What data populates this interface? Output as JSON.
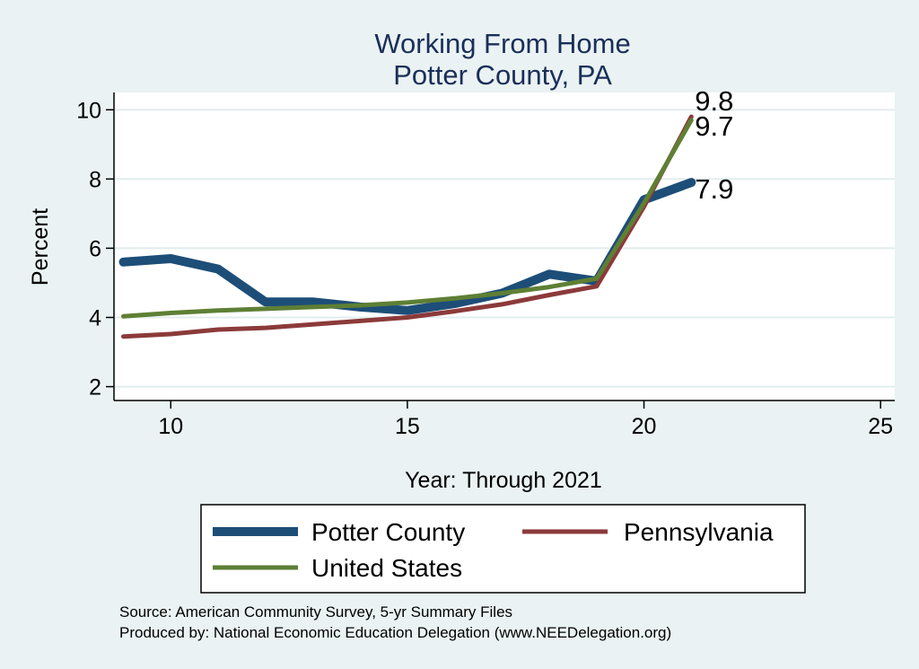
{
  "chart_data": {
    "type": "line",
    "title": [
      "Working From Home",
      "Potter County, PA"
    ],
    "xlabel": "Year: Through 2021",
    "ylabel": "Percent",
    "xlim": [
      8.8,
      25.3
    ],
    "ylim": [
      1.6,
      10.5
    ],
    "xticks": [
      10,
      15,
      20,
      25
    ],
    "yticks": [
      2,
      4,
      6,
      8,
      10
    ],
    "grid": true,
    "legend_position": "bottom",
    "colors": {
      "background": "#eaf2f3",
      "plot_background": "#ffffff",
      "grid": "#e3ecee",
      "title": "#1a2f5a"
    },
    "series": [
      {
        "name": "Potter County",
        "color": "#1d4e78",
        "stroke": 10,
        "x": [
          9,
          10,
          11,
          12,
          13,
          14,
          15,
          16,
          17,
          18,
          19,
          20,
          21
        ],
        "y": [
          5.6,
          5.7,
          5.4,
          4.45,
          4.45,
          4.3,
          4.2,
          4.4,
          4.7,
          5.25,
          5.05,
          7.4,
          7.9
        ],
        "end_label": "7.9"
      },
      {
        "name": "Pennsylvania",
        "color": "#8c3a3a",
        "stroke": 5,
        "x": [
          9,
          10,
          11,
          12,
          13,
          14,
          15,
          16,
          17,
          18,
          19,
          20,
          21
        ],
        "y": [
          3.45,
          3.52,
          3.65,
          3.7,
          3.8,
          3.9,
          4.0,
          4.18,
          4.38,
          4.65,
          4.9,
          7.2,
          9.8
        ],
        "end_label": "9.8"
      },
      {
        "name": "United States",
        "color": "#5e7f34",
        "stroke": 5,
        "x": [
          9,
          10,
          11,
          12,
          13,
          14,
          15,
          16,
          17,
          18,
          19,
          20,
          21
        ],
        "y": [
          4.03,
          4.13,
          4.2,
          4.25,
          4.3,
          4.35,
          4.43,
          4.55,
          4.7,
          4.88,
          5.12,
          7.3,
          9.7
        ],
        "end_label": "9.7"
      }
    ]
  },
  "notes": [
    "Source: American Community Survey, 5-yr Summary Files",
    "Produced by: National Economic Education Delegation (www.NEEDelegation.org)"
  ]
}
